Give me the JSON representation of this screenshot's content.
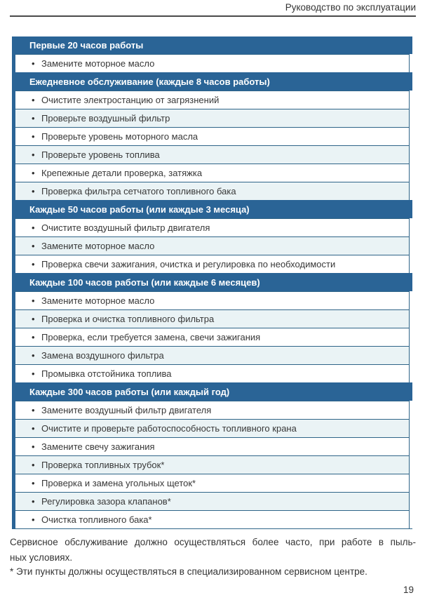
{
  "page": {
    "running_header": "Руководство по эксплуатации",
    "page_number": "19"
  },
  "table": {
    "bullet_char": "•",
    "sections": [
      {
        "header": "Первые 20 часов работы",
        "items": [
          "Замените моторное масло"
        ]
      },
      {
        "header": "Ежедневное обслуживание (каждые 8 часов работы)",
        "items": [
          "Очистите электростанцию от загрязнений",
          "Проверьте воздушный фильтр",
          "Проверьте уровень моторного масла",
          "Проверьте уровень топлива",
          "Крепежные детали проверка, затяжка",
          "Проверка фильтра сетчатого топливного бака"
        ]
      },
      {
        "header": "Каждые 50 часов работы (или каждые 3 месяца)",
        "items": [
          "Очистите воздушный фильтр двигателя",
          "Замените моторное масло",
          "Проверка свечи зажигания, очистка и регулировка по необходимости"
        ]
      },
      {
        "header": "Каждые 100 часов работы (или каждые 6 месяцев)",
        "items": [
          "Замените моторное масло",
          "Проверка и очистка топливного фильтра",
          "Проверка, если требуется замена, свечи зажигания",
          "Замена воздушного фильтра",
          "Промывка отстойника топлива"
        ]
      },
      {
        "header": "Каждые 300 часов работы (или каждый год)",
        "items": [
          "Замените воздушный фильтр двигателя",
          "Очистите и проверьте работоспособность топливного крана",
          "Замените свечу зажигания",
          "Проверка топливных трубок*",
          "Проверка и замена угольных щеток*",
          "Регулировка зазора клапанов*",
          "Очистка топливного бака*"
        ]
      }
    ]
  },
  "notes": {
    "service_note_line1": "Сервисное обслуживание должно осуществляться более часто, при работе в пыль-",
    "service_note_line2": "ных условиях.",
    "footnote": "* Эти пункты должны осуществляться в специализированном сервисном центре."
  },
  "colors": {
    "section_header_bg": "#2a6496",
    "row_alt_bg": "#eaf3f5",
    "table_border": "#2e6488",
    "text": "#333333",
    "header_text": "#ffffff"
  }
}
